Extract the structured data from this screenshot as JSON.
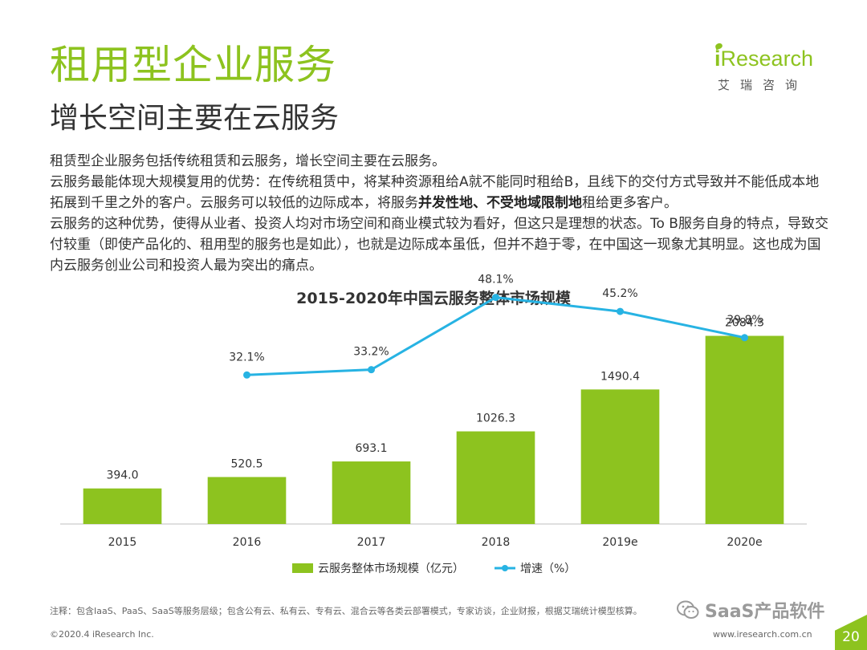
{
  "header": {
    "title": "租用型企业服务",
    "subtitle": "增长空间主要在云服务"
  },
  "logo": {
    "wordmark_i": "i",
    "wordmark_rest": "Research",
    "cn": "艾瑞咨询"
  },
  "body": {
    "p1": "租赁型企业服务包括传统租赁和云服务，增长空间主要在云服务。",
    "p2a": "云服务最能体现大规模复用的优势：在传统租赁中，将某种资源租给A就不能同时租给B，且线下的交付方式导致并不能低成本地拓展到千里之外的客户。云服务可以较低的边际成本，将服务",
    "p2b": "并发性地、不受地域限制地",
    "p2c": "租给更多客户。",
    "p3": "云服务的这种优势，使得从业者、投资人均对市场空间和商业模式较为看好，但这只是理想的状态。To B服务自身的特点，导致交付较重（即使产品化的、租用型的服务也是如此），也就是边际成本虽低，但并不趋于零，在中国这一现象尤其明显。这也成为国内云服务创业公司和投资人最为突出的痛点。"
  },
  "chart_data": {
    "type": "bar+line",
    "title": "2015-2020年中国云服务整体市场规模",
    "categories": [
      "2015",
      "2016",
      "2017",
      "2018",
      "2019e",
      "2020e"
    ],
    "series": [
      {
        "name": "云服务整体市场规模（亿元）",
        "type": "bar",
        "color": "#8dc31f",
        "values": [
          394.0,
          520.5,
          693.1,
          1026.3,
          1490.4,
          2084.3
        ],
        "labels": [
          "394.0",
          "520.5",
          "693.1",
          "1026.3",
          "1490.4",
          "2084.3"
        ]
      },
      {
        "name": "增速（%）",
        "type": "line",
        "color": "#27b3e3",
        "values": [
          null,
          32.1,
          33.2,
          48.1,
          45.2,
          39.8
        ],
        "labels": [
          "",
          "32.1%",
          "33.2%",
          "48.1%",
          "45.2%",
          "39.8%"
        ]
      }
    ],
    "bar_ylim": [
      0,
      2400
    ],
    "line_ylim": [
      0,
      80
    ],
    "legend_position": "bottom",
    "grid": false
  },
  "footer": {
    "note": "注释：包含IaaS、PaaS、SaaS等服务层级；包含公有云、私有云、专有云、混合云等各类云部署模式，专家访谈，企业财报，根据艾瑞统计模型核算。",
    "copyright": "©2020.4 iResearch Inc.",
    "website": "www.iresearch.com.cn",
    "page": "20",
    "watermark": "SaaS产品软件"
  }
}
